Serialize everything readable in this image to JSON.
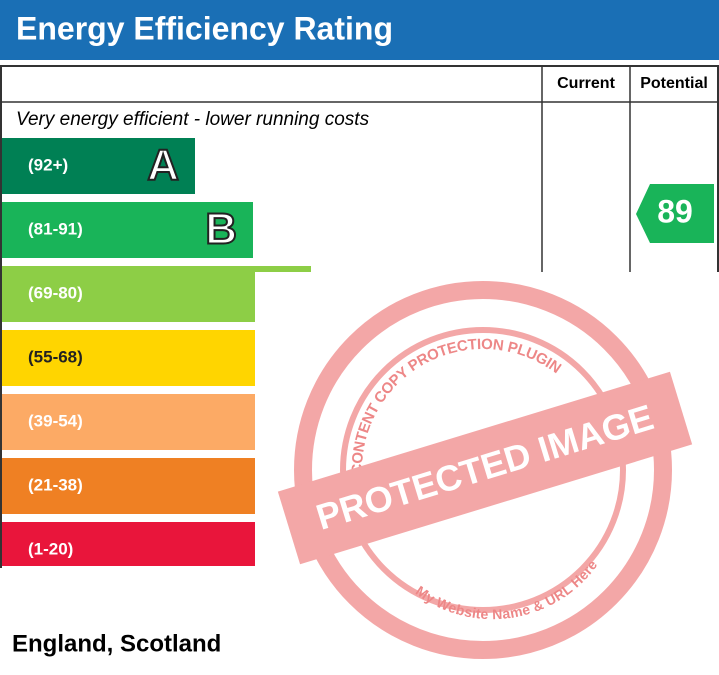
{
  "header": {
    "title": "Energy Efficiency Rating"
  },
  "table": {
    "columns": [
      "Current",
      "Potential"
    ],
    "top_note": "Very energy efficient - lower running costs",
    "bands": [
      {
        "range": "(92+)",
        "letter": "A",
        "color": "#008054"
      },
      {
        "range": "(81-91)",
        "letter": "B",
        "color": "#19b459"
      },
      {
        "range": "(69-80)",
        "color": "#8dce46"
      },
      {
        "range": "(55-68)",
        "color": "#ffd500"
      },
      {
        "range": "(39-54)",
        "color": "#fcaa65"
      },
      {
        "range": "(21-38)",
        "color": "#ef8023"
      },
      {
        "range": "(1-20)",
        "color": "#e9153b"
      }
    ],
    "potential": "89"
  },
  "watermark": {
    "ring_text": "WP CONTENT COPY PROTECTION PLUGIN",
    "stamp": "PROTECTED IMAGE",
    "url_text": "My Website Name & URL Here"
  },
  "footer": "England, Scotland"
}
